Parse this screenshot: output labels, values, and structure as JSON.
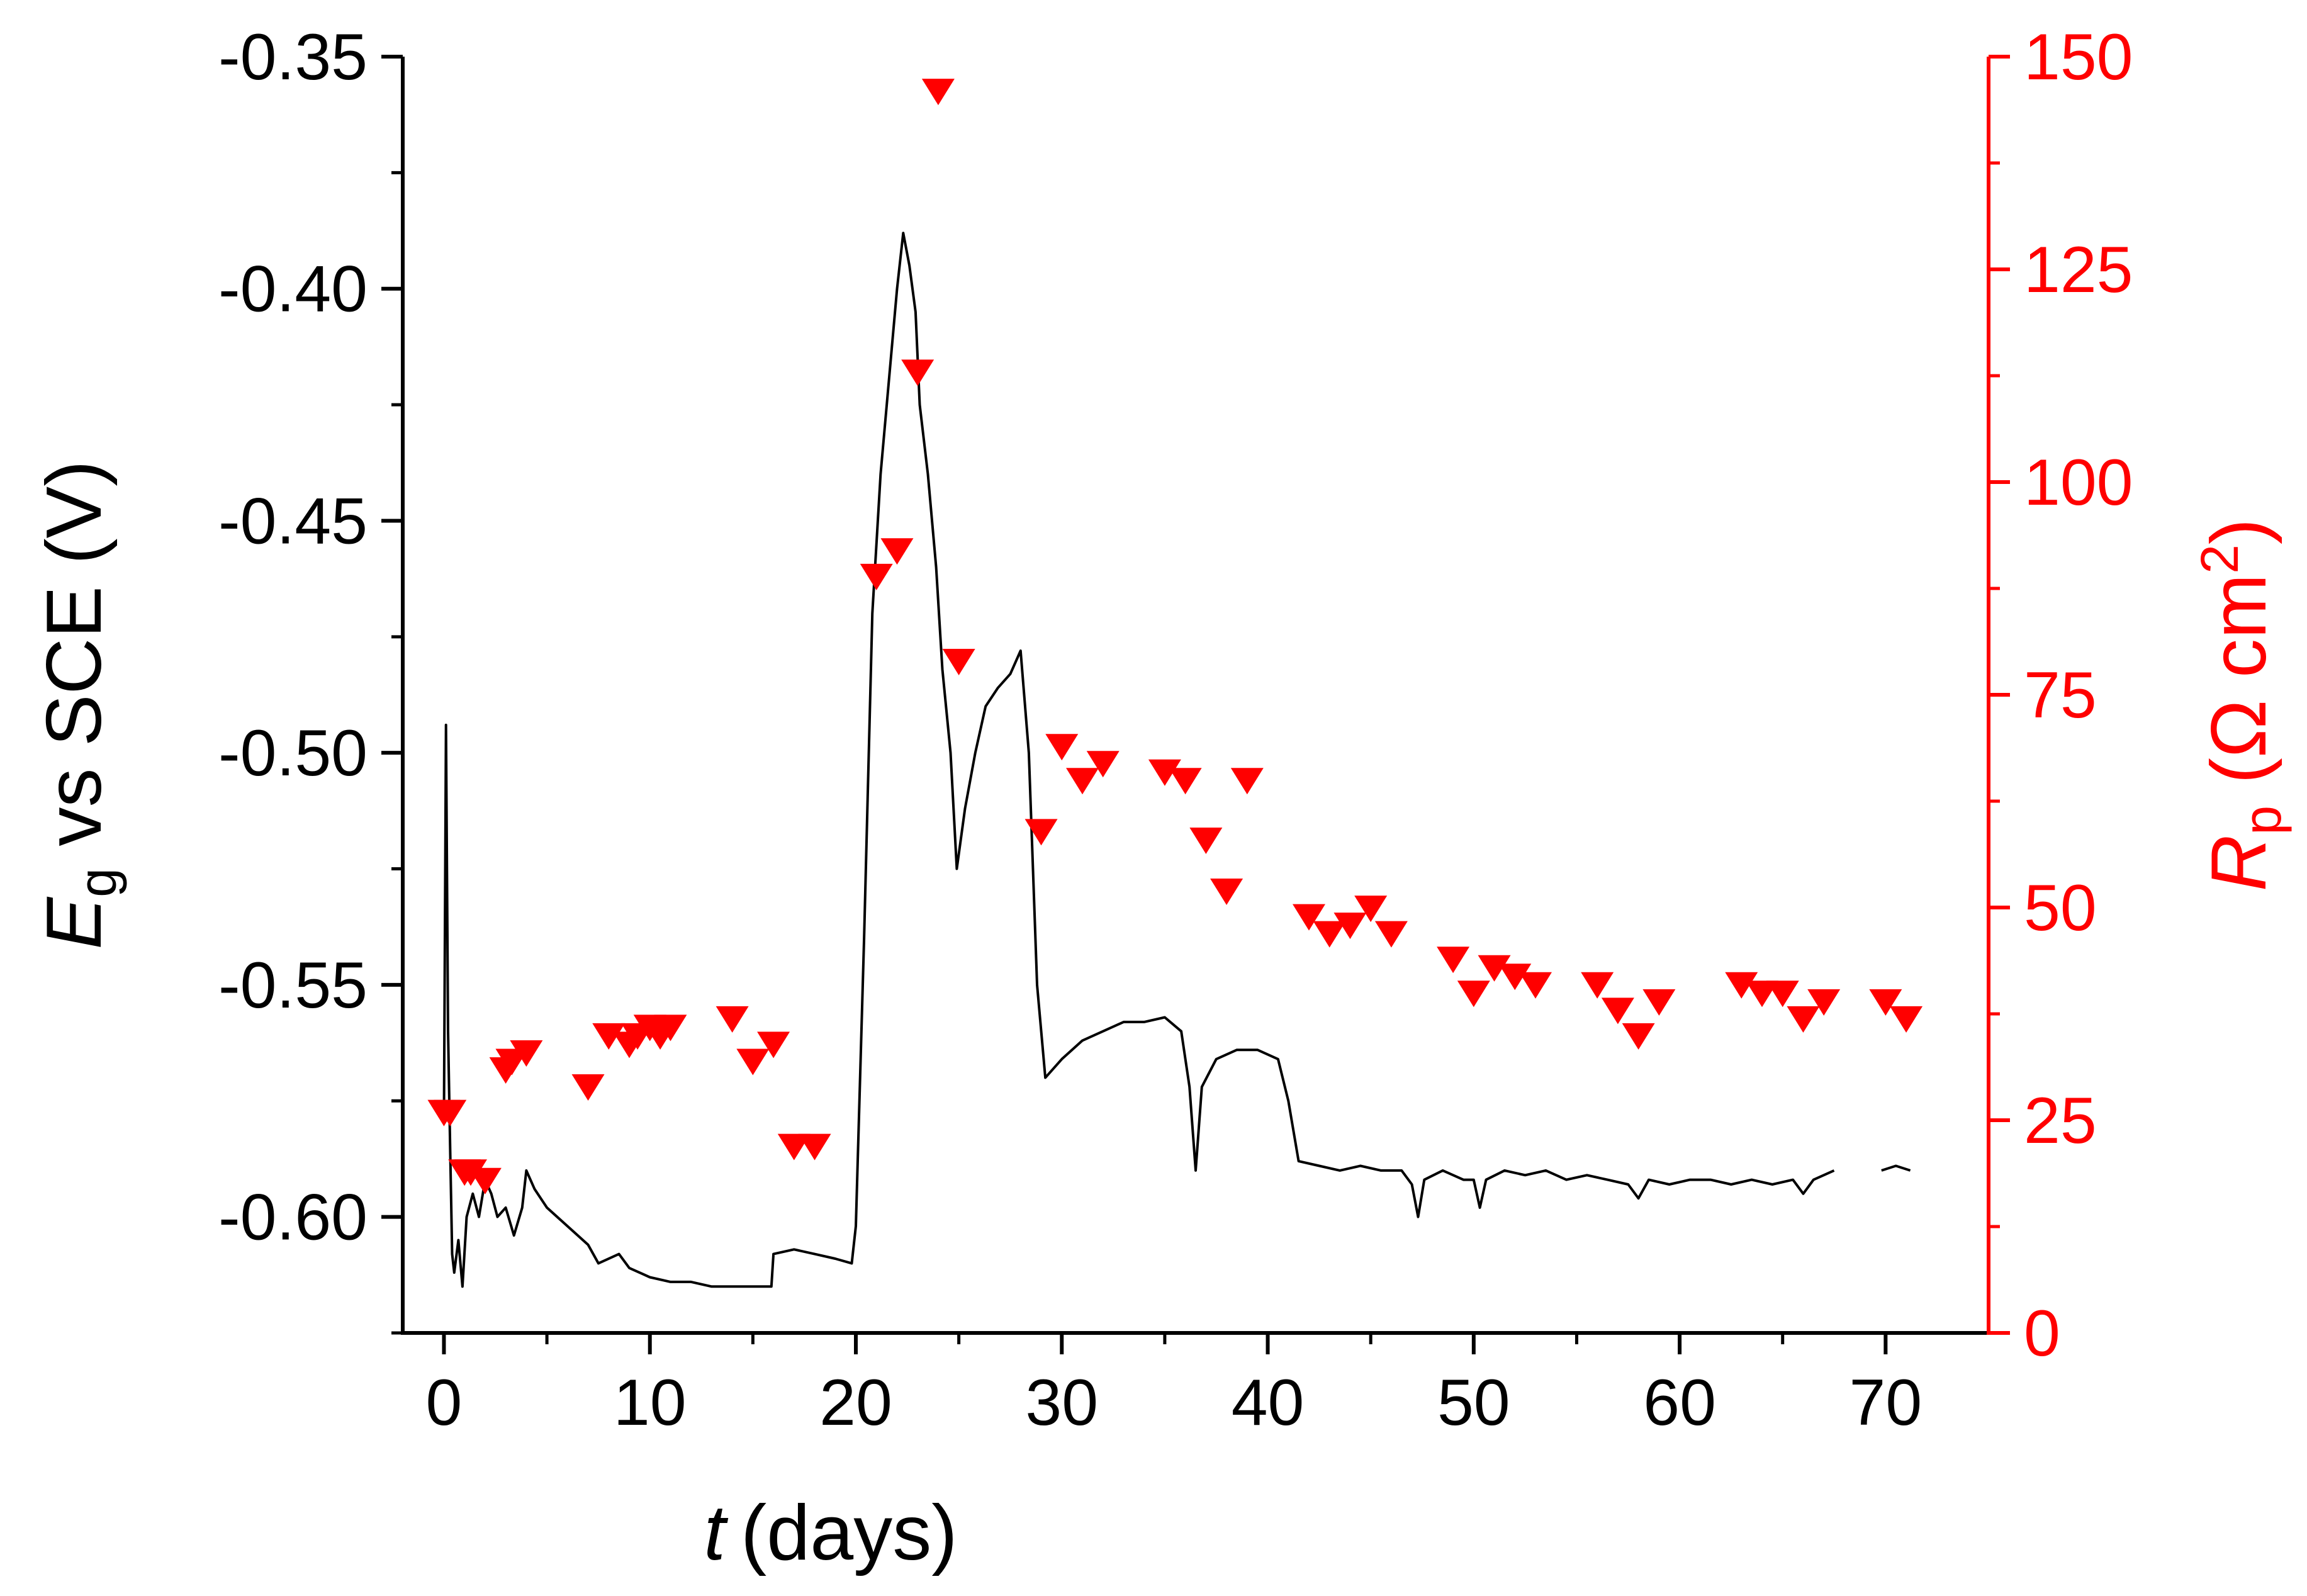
{
  "chart_data": {
    "type": "line+scatter",
    "x_axis": {
      "label_var": "t",
      "label_unit": "(days)",
      "range": [
        -2,
        75
      ],
      "major_ticks": [
        0,
        10,
        20,
        30,
        40,
        50,
        60,
        70
      ],
      "tick_labels": [
        "0",
        "10",
        "20",
        "30",
        "40",
        "50",
        "60",
        "70"
      ]
    },
    "y_left": {
      "label_var": "E",
      "label_sub": "g",
      "label_rest": " vs SCE (V)",
      "range": [
        -0.625,
        -0.35
      ],
      "major_ticks": [
        -0.6,
        -0.55,
        -0.5,
        -0.45,
        -0.4,
        -0.35
      ],
      "tick_labels": [
        "-0.60",
        "-0.55",
        "-0.50",
        "-0.45",
        "-0.40",
        "-0.35"
      ],
      "color": "#000000"
    },
    "y_right": {
      "label_var": "R",
      "label_sub": "p",
      "label_open": " (Ω cm",
      "label_sup": "2",
      "label_close": ")",
      "range": [
        0,
        150
      ],
      "major_ticks": [
        0,
        25,
        50,
        75,
        100,
        125,
        150
      ],
      "tick_labels": [
        "0",
        "25",
        "50",
        "75",
        "100",
        "125",
        "150"
      ],
      "color": "#ff0000"
    },
    "series": [
      {
        "name": "Eg",
        "axis": "left",
        "style": "line",
        "color": "#000000",
        "segments": [
          [
            [
              0.0,
              -0.578
            ],
            [
              0.1,
              -0.494
            ],
            [
              0.2,
              -0.56
            ],
            [
              0.3,
              -0.585
            ],
            [
              0.4,
              -0.608
            ],
            [
              0.5,
              -0.612
            ],
            [
              0.7,
              -0.605
            ],
            [
              0.9,
              -0.615
            ],
            [
              1.1,
              -0.6
            ],
            [
              1.4,
              -0.595
            ],
            [
              1.7,
              -0.6
            ],
            [
              2.0,
              -0.592
            ],
            [
              2.3,
              -0.595
            ],
            [
              2.6,
              -0.6
            ],
            [
              3.0,
              -0.598
            ],
            [
              3.4,
              -0.604
            ],
            [
              3.8,
              -0.598
            ],
            [
              4.0,
              -0.59
            ],
            [
              4.4,
              -0.594
            ],
            [
              5.0,
              -0.598
            ],
            [
              6.0,
              -0.602
            ],
            [
              7.0,
              -0.606
            ],
            [
              7.5,
              -0.61
            ],
            [
              8.5,
              -0.608
            ],
            [
              9.0,
              -0.611
            ],
            [
              10.0,
              -0.613
            ],
            [
              11.0,
              -0.614
            ],
            [
              12.0,
              -0.614
            ],
            [
              13.0,
              -0.615
            ],
            [
              14.0,
              -0.615
            ],
            [
              15.0,
              -0.615
            ],
            [
              15.9,
              -0.615
            ],
            [
              16.0,
              -0.608
            ],
            [
              17.0,
              -0.607
            ],
            [
              18.0,
              -0.608
            ],
            [
              19.0,
              -0.609
            ],
            [
              19.8,
              -0.61
            ],
            [
              20.0,
              -0.602
            ],
            [
              20.4,
              -0.54
            ],
            [
              20.8,
              -0.47
            ],
            [
              21.2,
              -0.44
            ],
            [
              21.6,
              -0.42
            ],
            [
              22.0,
              -0.4
            ],
            [
              22.3,
              -0.388
            ],
            [
              22.6,
              -0.395
            ],
            [
              22.9,
              -0.405
            ],
            [
              23.1,
              -0.425
            ],
            [
              23.5,
              -0.44
            ],
            [
              23.9,
              -0.46
            ],
            [
              24.2,
              -0.482
            ],
            [
              24.6,
              -0.5
            ],
            [
              24.9,
              -0.525
            ],
            [
              25.3,
              -0.512
            ],
            [
              25.8,
              -0.5
            ],
            [
              26.3,
              -0.49
            ],
            [
              26.9,
              -0.486
            ],
            [
              27.5,
              -0.483
            ],
            [
              28.0,
              -0.478
            ],
            [
              28.4,
              -0.5
            ],
            [
              28.8,
              -0.55
            ],
            [
              29.2,
              -0.57
            ],
            [
              29.6,
              -0.568
            ],
            [
              30.0,
              -0.566
            ],
            [
              31.0,
              -0.562
            ],
            [
              32.0,
              -0.56
            ],
            [
              33.0,
              -0.558
            ],
            [
              34.0,
              -0.558
            ],
            [
              35.0,
              -0.557
            ],
            [
              35.8,
              -0.56
            ],
            [
              36.2,
              -0.572
            ],
            [
              36.5,
              -0.59
            ],
            [
              36.8,
              -0.572
            ],
            [
              37.5,
              -0.566
            ],
            [
              38.5,
              -0.564
            ],
            [
              39.5,
              -0.564
            ],
            [
              40.5,
              -0.566
            ],
            [
              41.0,
              -0.575
            ],
            [
              41.5,
              -0.588
            ],
            [
              42.5,
              -0.589
            ],
            [
              43.5,
              -0.59
            ],
            [
              44.5,
              -0.589
            ],
            [
              45.5,
              -0.59
            ],
            [
              46.5,
              -0.59
            ],
            [
              47.0,
              -0.593
            ],
            [
              47.3,
              -0.6
            ],
            [
              47.6,
              -0.592
            ],
            [
              48.5,
              -0.59
            ],
            [
              49.5,
              -0.592
            ],
            [
              50.0,
              -0.592
            ],
            [
              50.3,
              -0.598
            ],
            [
              50.6,
              -0.592
            ],
            [
              51.5,
              -0.59
            ],
            [
              52.5,
              -0.591
            ],
            [
              53.5,
              -0.59
            ],
            [
              54.5,
              -0.592
            ],
            [
              55.5,
              -0.591
            ],
            [
              56.5,
              -0.592
            ],
            [
              57.5,
              -0.593
            ],
            [
              58.0,
              -0.596
            ],
            [
              58.5,
              -0.592
            ],
            [
              59.5,
              -0.593
            ],
            [
              60.5,
              -0.592
            ],
            [
              61.5,
              -0.592
            ],
            [
              62.5,
              -0.593
            ],
            [
              63.5,
              -0.592
            ],
            [
              64.5,
              -0.593
            ],
            [
              65.5,
              -0.592
            ],
            [
              66.0,
              -0.595
            ],
            [
              66.5,
              -0.592
            ],
            [
              67.5,
              -0.59
            ]
          ],
          [
            [
              69.8,
              -0.59
            ],
            [
              70.5,
              -0.589
            ],
            [
              71.2,
              -0.59
            ]
          ]
        ]
      },
      {
        "name": "Rp",
        "axis": "right",
        "style": "markers",
        "marker": "triangle-down",
        "color": "#ff0000",
        "points": [
          [
            0,
            26
          ],
          [
            0.3,
            26
          ],
          [
            1,
            19
          ],
          [
            1.3,
            19
          ],
          [
            2,
            18
          ],
          [
            3,
            31
          ],
          [
            3.3,
            32
          ],
          [
            4,
            33
          ],
          [
            7,
            29
          ],
          [
            8,
            35
          ],
          [
            9,
            34
          ],
          [
            9.4,
            35
          ],
          [
            10,
            36
          ],
          [
            10.5,
            35
          ],
          [
            11,
            36
          ],
          [
            14,
            37
          ],
          [
            15,
            32
          ],
          [
            16,
            34
          ],
          [
            17,
            22
          ],
          [
            18,
            22
          ],
          [
            21,
            89
          ],
          [
            22,
            92
          ],
          [
            23,
            113
          ],
          [
            24,
            146
          ],
          [
            25,
            79
          ],
          [
            29,
            59
          ],
          [
            30,
            69
          ],
          [
            31,
            65
          ],
          [
            32,
            67
          ],
          [
            35,
            66
          ],
          [
            36,
            65
          ],
          [
            37,
            58
          ],
          [
            38,
            52
          ],
          [
            39,
            65
          ],
          [
            42,
            49
          ],
          [
            43,
            47
          ],
          [
            44,
            48
          ],
          [
            45,
            50
          ],
          [
            46,
            47
          ],
          [
            49,
            44
          ],
          [
            50,
            40
          ],
          [
            51,
            43
          ],
          [
            52,
            42
          ],
          [
            53,
            41
          ],
          [
            56,
            41
          ],
          [
            57,
            38
          ],
          [
            58,
            35
          ],
          [
            59,
            39
          ],
          [
            63,
            41
          ],
          [
            64,
            40
          ],
          [
            65,
            40
          ],
          [
            66,
            37
          ],
          [
            67,
            39
          ],
          [
            70,
            39
          ],
          [
            71,
            37
          ]
        ]
      }
    ]
  }
}
